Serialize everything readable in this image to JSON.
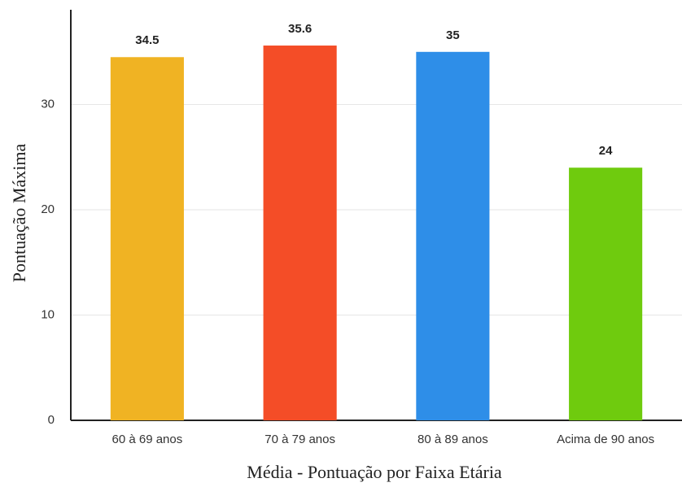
{
  "chart_data": {
    "type": "bar",
    "x_label": "Média - Pontuação por Faixa Etária",
    "y_label": "Pontuação Máxima",
    "categories": [
      "60 à 69 anos",
      "70 à 79 anos",
      "80 à 89 anos",
      "Acima de 90 anos"
    ],
    "values": [
      34.5,
      35.6,
      35,
      24
    ],
    "colors": [
      "#f0b323",
      "#f44d27",
      "#2e8ee8",
      "#6fcb0e"
    ],
    "ylim": [
      0,
      39
    ],
    "yticks": [
      0,
      10,
      20,
      30
    ],
    "grid": true
  }
}
